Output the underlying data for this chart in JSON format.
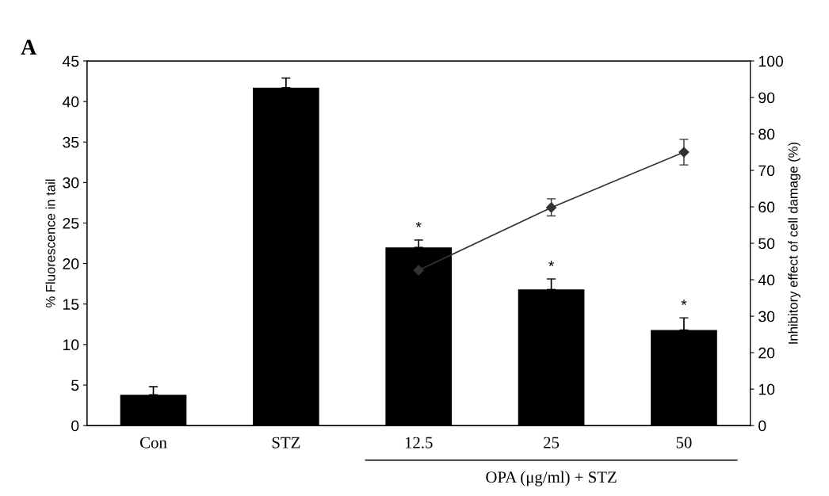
{
  "chart_data": {
    "type": "bar",
    "title": "A",
    "categories": [
      "Con",
      "STZ",
      "12.5",
      "25",
      "50"
    ],
    "series": [
      {
        "color": "#000000",
        "values": [
          3.8,
          41.7,
          22.0,
          16.8,
          11.8
        ],
        "errors": [
          [
            3.8,
            4.8
          ],
          [
            41.7,
            42.9
          ],
          [
            22.0,
            22.9
          ],
          [
            16.8,
            18.1
          ],
          [
            11.8,
            13.3
          ]
        ]
      },
      {
        "type": "line",
        "axis": "y2",
        "color": "#333333",
        "values": [
          null,
          null,
          42.6,
          59.8,
          75.0
        ],
        "errors": [
          null,
          null,
          null,
          [
            57.5,
            62.2
          ],
          [
            71.5,
            78.5
          ]
        ]
      }
    ],
    "ylabel": "% Fluorescence in tail",
    "y2label": "Inhibitory effect of cell damage (%)",
    "ylim": [
      0,
      45
    ],
    "yticks": [
      0,
      5,
      10,
      15,
      20,
      25,
      30,
      35,
      40,
      45
    ],
    "y2lim": [
      0,
      100
    ],
    "y2ticks": [
      0,
      10,
      20,
      30,
      40,
      50,
      60,
      70,
      80,
      90,
      100
    ],
    "marker": "diamond",
    "line_style": "solid",
    "grid": false,
    "legend": false,
    "annotations": [
      {
        "text": "*",
        "x": "12.5",
        "y": 22.9
      },
      {
        "text": "*",
        "x": "25",
        "y": 18.1
      },
      {
        "text": "*",
        "x": "50",
        "y": 13.3
      },
      "OPA (μg/ml) + STZ"
    ]
  }
}
